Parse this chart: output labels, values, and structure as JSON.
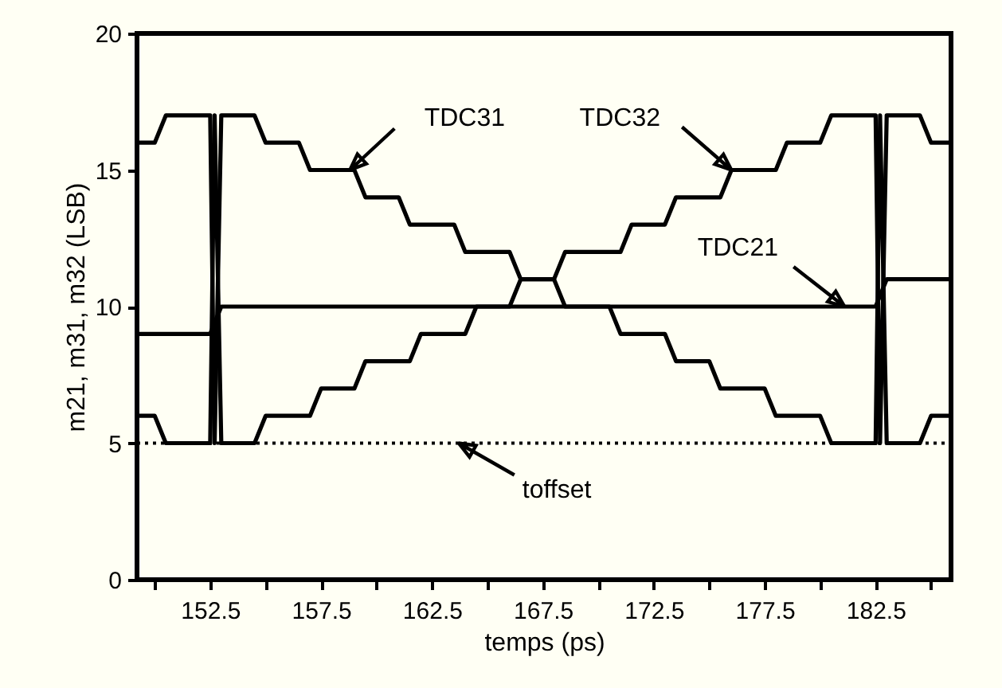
{
  "chart_data": {
    "type": "line",
    "xlabel": "temps (ps)",
    "ylabel": "m21, m31, m32 (LSB)",
    "xlim": [
      149.2,
      185.9
    ],
    "ylim": [
      0,
      20
    ],
    "xticks": [
      {
        "value": 150,
        "label": null
      },
      152.5,
      {
        "value": 155,
        "label": null
      },
      157.5,
      {
        "value": 160,
        "label": null
      },
      162.5,
      {
        "value": 165,
        "label": null
      },
      167.5,
      {
        "value": 170,
        "label": null
      },
      172.5,
      {
        "value": 175,
        "label": null
      },
      177.5,
      {
        "value": 180,
        "label": null
      },
      182.5,
      {
        "value": 185,
        "label": null
      }
    ],
    "yticks": [
      0,
      5,
      10,
      15,
      20
    ],
    "grid": false,
    "marker": "none",
    "line_style": "solid",
    "series": [
      {
        "color": "#000000",
        "x": [
          149.2,
          150.0,
          150.5,
          152.5,
          152.7,
          153.0,
          154.5,
          155.0,
          156.5,
          157.0,
          159.0,
          159.5,
          161.0,
          161.5,
          163.5,
          164.0,
          166.0,
          166.5,
          168.0,
          168.5,
          170.5,
          171.0,
          173.0,
          173.5,
          175.0,
          175.5,
          177.5,
          178.0,
          180.0,
          180.5,
          182.5,
          182.7,
          183.0,
          184.5,
          185.0,
          185.9
        ],
        "values": [
          16,
          16,
          17,
          17,
          5,
          17,
          17,
          16,
          16,
          15,
          15,
          14,
          14,
          13,
          13,
          12,
          12,
          11,
          11,
          10,
          10,
          9,
          9,
          8,
          8,
          7,
          7,
          6,
          6,
          5,
          5,
          17,
          5,
          5,
          6,
          6
        ]
      },
      {
        "color": "#000000",
        "x": [
          149.2,
          150.0,
          150.5,
          152.5,
          152.7,
          153.0,
          154.5,
          155.0,
          157.0,
          157.5,
          159.0,
          159.5,
          161.5,
          162.0,
          164.0,
          164.5,
          166.0,
          166.5,
          168.0,
          168.5,
          171.0,
          171.5,
          173.0,
          173.5,
          175.5,
          176.0,
          178.0,
          178.5,
          180.0,
          180.5,
          182.5,
          182.7,
          183.0,
          184.5,
          185.0,
          185.9
        ],
        "values": [
          6,
          6,
          5,
          5,
          17,
          5,
          5,
          6,
          6,
          7,
          7,
          8,
          8,
          9,
          9,
          10,
          10,
          11,
          11,
          12,
          12,
          13,
          13,
          14,
          14,
          15,
          15,
          16,
          16,
          17,
          17,
          5,
          17,
          17,
          16,
          16
        ]
      },
      {
        "color": "#000000",
        "x": [
          149.2,
          152.5,
          153.0,
          182.5,
          183.0,
          185.9
        ],
        "values": [
          9,
          9,
          10,
          10,
          11,
          11
        ]
      }
    ],
    "ref_lines": [
      {
        "axis": "y",
        "value": 5,
        "color": "#000000",
        "line_style": "dotted"
      }
    ],
    "annotations": [
      {
        "text": "TDC31",
        "x": 158.8,
        "y": 15
      },
      {
        "text": "TDC32",
        "x": 176.0,
        "y": 15
      },
      {
        "text": "TDC21",
        "x": 181.1,
        "y": 10
      },
      {
        "text": "toffset",
        "x": 163.7,
        "y": 5
      }
    ]
  }
}
